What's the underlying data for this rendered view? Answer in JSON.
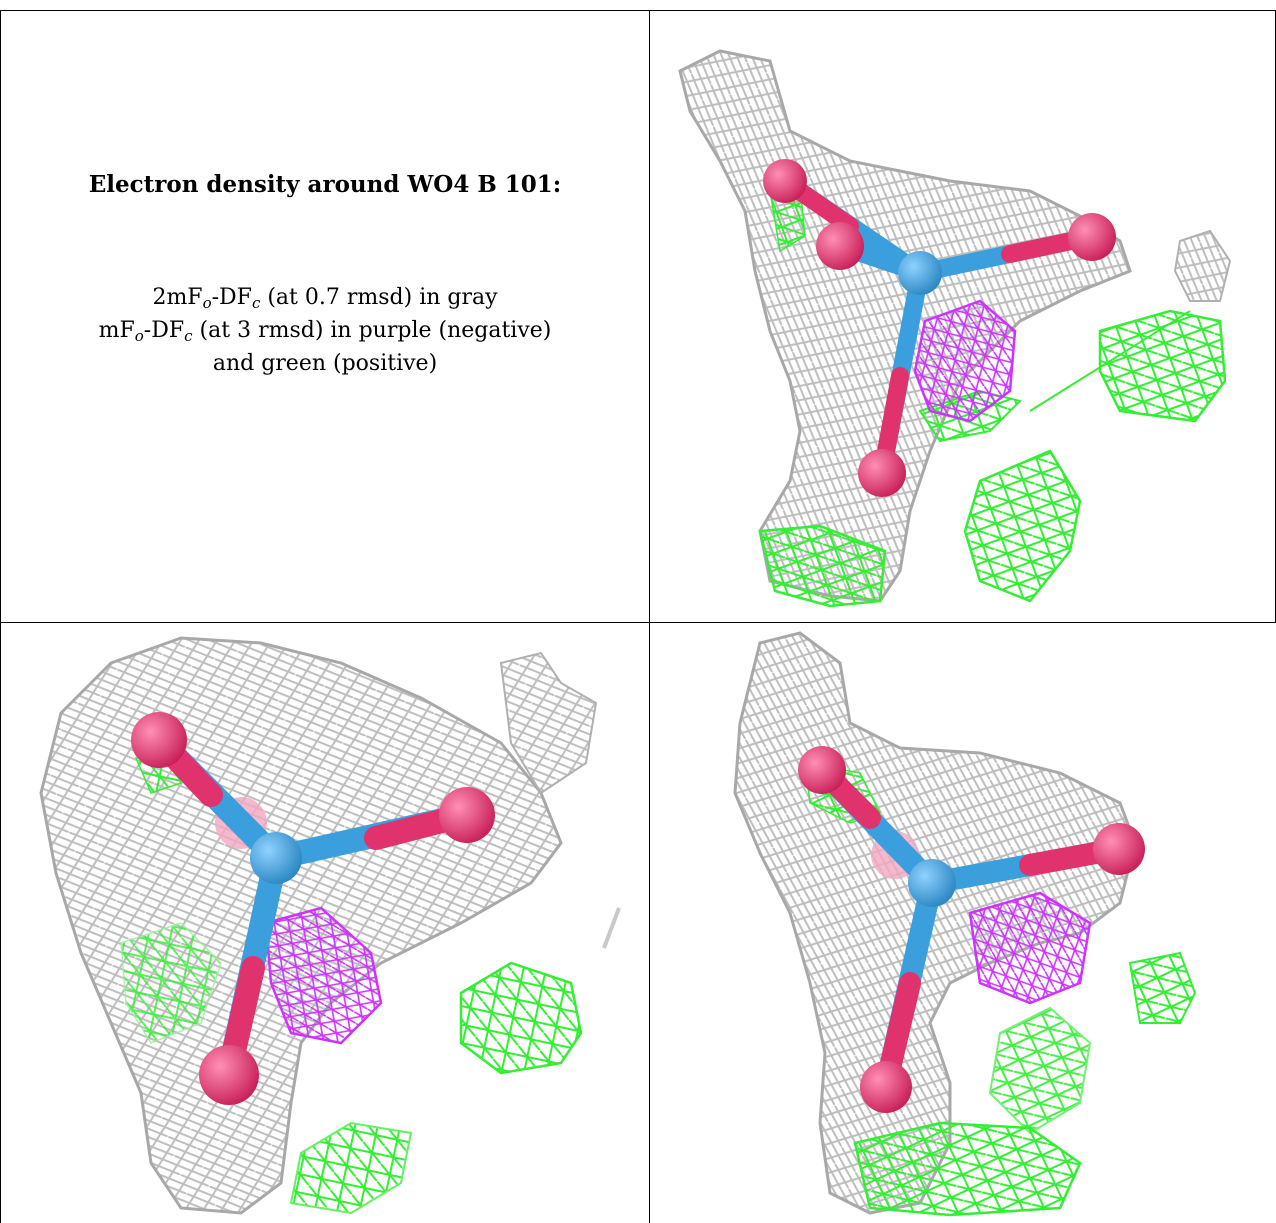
{
  "caption": {
    "title": "Electron density around WO4 B 101:",
    "line1": {
      "pre": "2mF",
      "sub1": "o",
      "mid": "-DF",
      "sub2": "c",
      "post": " (at 0.7 rmsd) in gray"
    },
    "line2": {
      "pre": "mF",
      "sub1": "o",
      "mid": "-DF",
      "sub2": "c",
      "post": " (at 3 rmsd) in purple (negative)"
    },
    "line3": "and green (positive)"
  },
  "colors": {
    "map_2fofc": "#b4b4b4",
    "map_fofc_negative": "#cc33ff",
    "map_fofc_positive": "#33ee33",
    "tungsten": "#3a9fdc",
    "oxygen": "#e0336e"
  },
  "views": [
    {
      "name": "view-top-right",
      "molecule": "WO4"
    },
    {
      "name": "view-bottom-left",
      "molecule": "WO4"
    },
    {
      "name": "view-bottom-right",
      "molecule": "WO4"
    }
  ]
}
